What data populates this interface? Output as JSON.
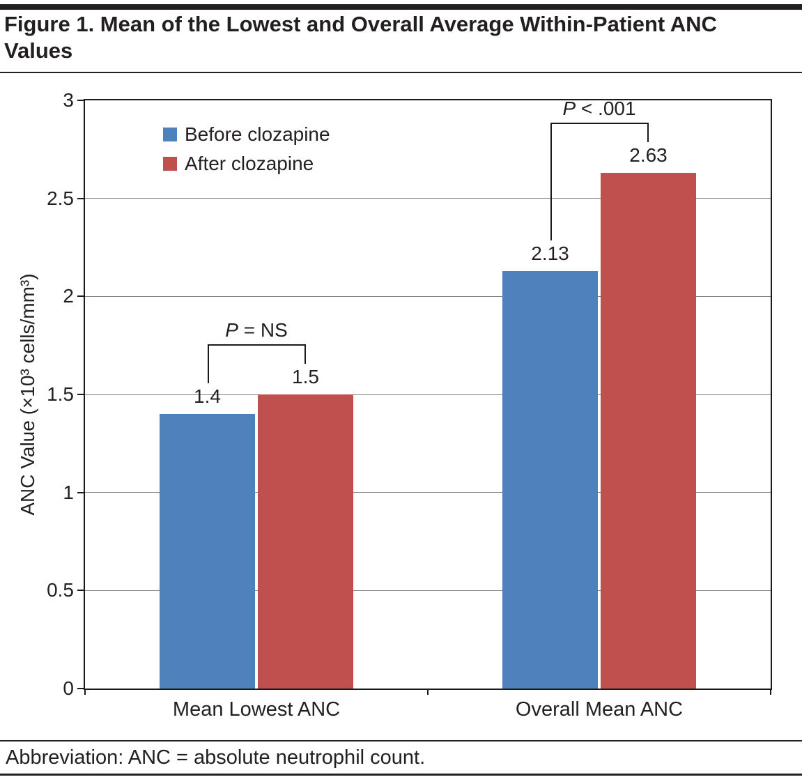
{
  "figure": {
    "title": "Figure 1. Mean of the Lowest and Overall Average Within-Patient ANC Values",
    "footnote": "Abbreviation: ANC = absolute neutrophil count."
  },
  "chart_data": {
    "type": "bar",
    "title": "Mean of the Lowest and Overall Average Within-Patient ANC Values",
    "categories": [
      "Mean Lowest ANC",
      "Overall Mean ANC"
    ],
    "series": [
      {
        "name": "Before clozapine",
        "color": "#4F81BD",
        "values": [
          1.4,
          2.13
        ]
      },
      {
        "name": "After clozapine",
        "color": "#C0504D",
        "values": [
          1.5,
          2.63
        ]
      }
    ],
    "ylabel": "ANC Value (×10³ cells/mm³)",
    "xlabel": "",
    "ylim": [
      0,
      3
    ],
    "yticks": [
      0,
      0.5,
      1,
      1.5,
      2,
      2.5,
      3
    ],
    "ytick_labels": [
      "0",
      "0.5",
      "1",
      "1.5",
      "2",
      "2.5",
      "3"
    ],
    "grid": true,
    "legend_position": "top-left",
    "annotations": [
      {
        "group": 0,
        "label_p": "P",
        "label_rest": " = NS"
      },
      {
        "group": 1,
        "label_p": "P",
        "label_rest": " < .001"
      }
    ]
  }
}
